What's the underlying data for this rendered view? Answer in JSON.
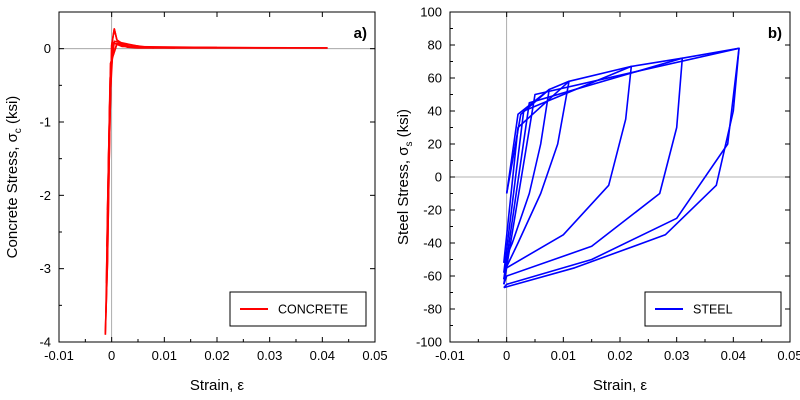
{
  "chart_data": [
    {
      "type": "line",
      "panel_label": "a)",
      "xlabel": "Strain, ε",
      "ylabel": "Concrete Stress, σc (ksi)",
      "ylabel_main": "Concrete Stress, σ",
      "ylabel_sub": "c",
      "ylabel_tail": " (ksi)",
      "xlim": [
        -0.01,
        0.05
      ],
      "ylim": [
        -4,
        0.5
      ],
      "xticks": [
        -0.01,
        0,
        0.01,
        0.02,
        0.03,
        0.04,
        0.05
      ],
      "xtick_labels": [
        "-0.01",
        "0",
        "0.01",
        "0.02",
        "0.03",
        "0.04",
        "0.05"
      ],
      "yticks": [
        -4,
        -3,
        -2,
        -1,
        0
      ],
      "ytick_labels": [
        "-4",
        "-3",
        "-2",
        "-1",
        "0"
      ],
      "legend_position": "bottom-right",
      "colors": {
        "series": "#ff0000"
      },
      "series": [
        {
          "name": "CONCRETE",
          "x": [
            -0.0012,
            -0.0008,
            -0.0004,
            0,
            0.0005,
            0.001,
            0.002,
            0.003,
            0.005,
            0.01,
            0.02,
            0.03,
            0.041
          ],
          "y": [
            -3.9,
            -2.9,
            -1.2,
            0.05,
            0.27,
            0.12,
            0.05,
            0.02,
            0.01,
            0.01,
            0.01,
            0.01,
            0.01
          ]
        }
      ]
    },
    {
      "type": "line",
      "panel_label": "b)",
      "xlabel": "Strain, ε",
      "ylabel": "Steel Stress, σs (ksi)",
      "ylabel_main": "Steel Stress, σ",
      "ylabel_sub": "s",
      "ylabel_tail": " (ksi)",
      "xlim": [
        -0.01,
        0.05
      ],
      "ylim": [
        -100,
        100
      ],
      "xticks": [
        -0.01,
        0,
        0.01,
        0.02,
        0.03,
        0.04,
        0.05
      ],
      "xtick_labels": [
        "-0.01",
        "0",
        "0.01",
        "0.02",
        "0.03",
        "0.04",
        "0.05"
      ],
      "yticks": [
        -100,
        -80,
        -60,
        -40,
        -20,
        0,
        20,
        40,
        60,
        80,
        100
      ],
      "ytick_labels": [
        "-100",
        "-80",
        "-60",
        "-40",
        "-20",
        "0",
        "20",
        "40",
        "60",
        "80",
        "100"
      ],
      "legend_position": "bottom-right",
      "colors": {
        "series": "#0000ff"
      },
      "series": [
        {
          "name": "STEEL",
          "x": [
            0,
            0.002,
            0.0075,
            0.011,
            0.022,
            0.031,
            0.041,
            0.039,
            0.03,
            0.015,
            0,
            -0.0005
          ],
          "y": [
            -10,
            38,
            53,
            58,
            67,
            72,
            78,
            20,
            -25,
            -50,
            -65,
            -67
          ]
        }
      ]
    }
  ]
}
